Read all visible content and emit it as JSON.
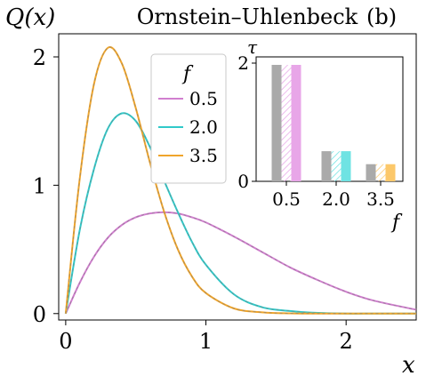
{
  "chart_data": [
    {
      "type": "line",
      "title": "Ornstein–Uhlenbeck",
      "panel_label": "(b)",
      "ylabel": "Q(x)",
      "xlabel": "x",
      "xlim": [
        -0.05,
        2.5
      ],
      "ylim": [
        -0.05,
        2.18
      ],
      "xticks": [
        0,
        1,
        2
      ],
      "xtick_labels": [
        "0",
        "1",
        "2"
      ],
      "yticks": [
        0,
        1,
        2
      ],
      "ytick_labels": [
        "0",
        "1",
        "2"
      ],
      "grid": false,
      "legend": {
        "title": "f",
        "placement": "upper-center"
      },
      "x": [
        0,
        0.1,
        0.2,
        0.3,
        0.4,
        0.5,
        0.6,
        0.7,
        0.8,
        0.9,
        1.0,
        1.2,
        1.4,
        1.6,
        1.8,
        2.0,
        2.2,
        2.5
      ],
      "series": [
        {
          "name": "0.5",
          "color": "#d17fcf",
          "values": [
            0,
            0.24,
            0.44,
            0.59,
            0.69,
            0.75,
            0.78,
            0.79,
            0.78,
            0.75,
            0.71,
            0.6,
            0.48,
            0.36,
            0.26,
            0.17,
            0.1,
            0.03
          ]
        },
        {
          "name": "2.0",
          "color": "#30c9c9",
          "values": [
            0,
            0.65,
            1.12,
            1.44,
            1.56,
            1.5,
            1.3,
            1.04,
            0.79,
            0.56,
            0.38,
            0.15,
            0.05,
            0.02,
            0.005,
            0.0,
            0.0,
            0.0
          ]
        },
        {
          "name": "3.5",
          "color": "#f0a52b",
          "values": [
            0,
            1.05,
            1.78,
            2.07,
            1.95,
            1.6,
            1.18,
            0.8,
            0.5,
            0.29,
            0.16,
            0.04,
            0.01,
            0.002,
            0.0,
            0.0,
            0.0,
            0.0
          ]
        }
      ]
    },
    {
      "type": "bar",
      "ylabel": "τ",
      "xlabel": "f",
      "categories": [
        "0.5",
        "2.0",
        "3.5"
      ],
      "ylim": [
        0,
        2.0
      ],
      "yticks": [
        0,
        2
      ],
      "ytick_labels": [
        "0",
        "2"
      ],
      "series": [
        {
          "name": "",
          "style": "solid",
          "color": "#aaaaaa",
          "values": [
            1.97,
            0.51,
            0.29
          ]
        },
        {
          "name": "",
          "style": "hatched",
          "values": [
            1.97,
            0.51,
            0.29
          ]
        },
        {
          "name": "",
          "style": "solid",
          "values": [
            1.97,
            0.51,
            0.29
          ]
        }
      ],
      "category_colors": [
        "#e8a6e8",
        "#6fe3e3",
        "#fcc86a"
      ]
    }
  ]
}
